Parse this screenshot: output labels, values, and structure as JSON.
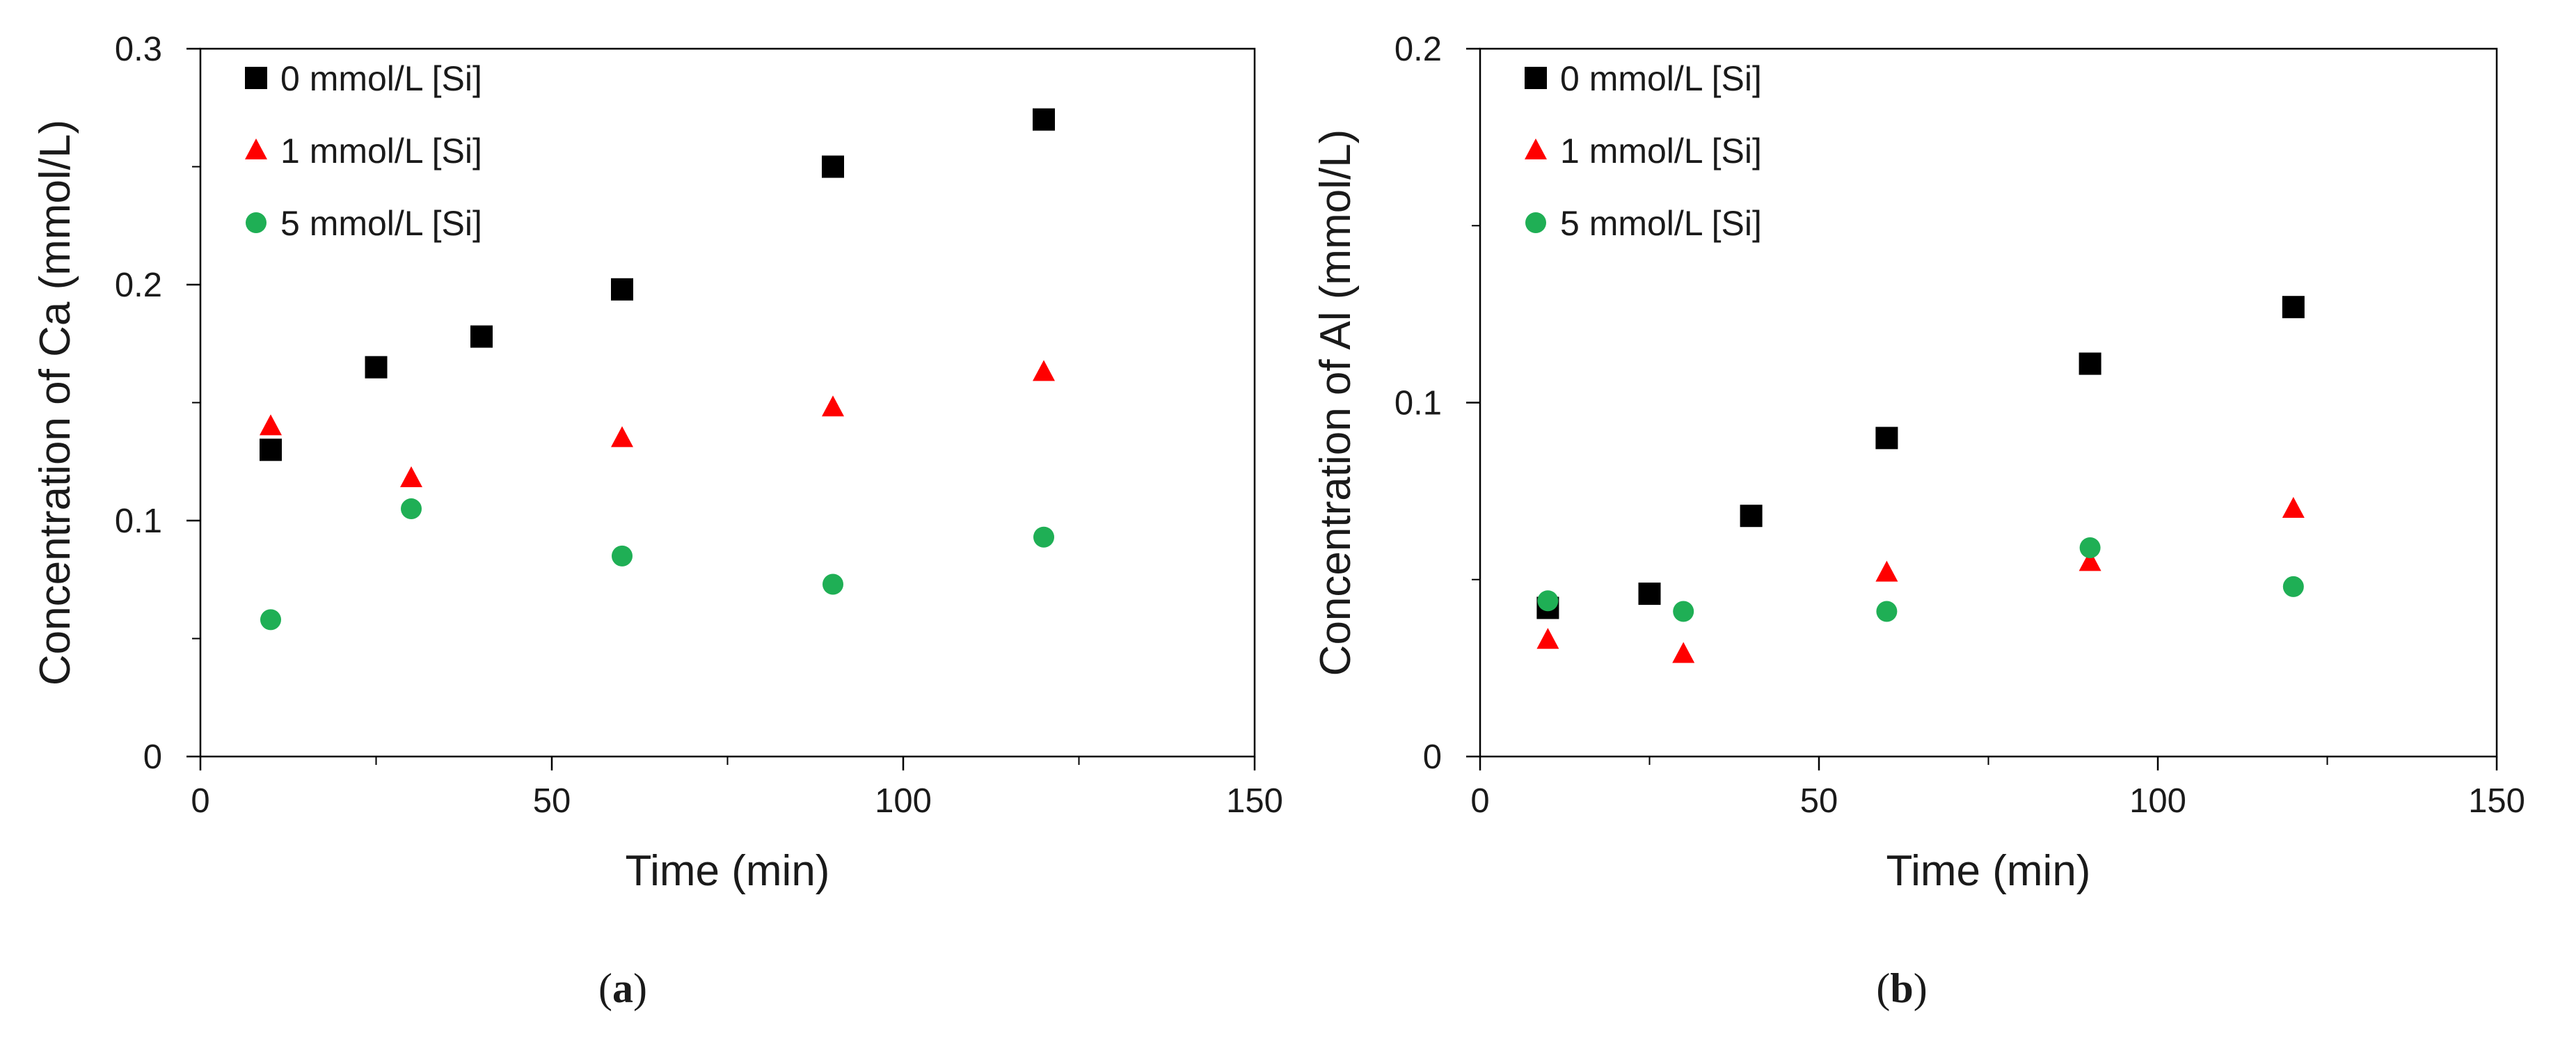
{
  "colors": {
    "series0": "#000000",
    "series1": "#ff0000",
    "series2": "#1faf55",
    "axis": "#000000"
  },
  "chart_data": [
    {
      "type": "scatter",
      "caption_letter": "a",
      "xlabel": "Time (min)",
      "ylabel": "Concentration of Ca (mmol/L)",
      "xlim": [
        0,
        150
      ],
      "ylim": [
        0,
        0.3
      ],
      "xticks": [
        0,
        50,
        100,
        150
      ],
      "xtick_labels": [
        "0",
        "50",
        "100",
        "150"
      ],
      "yticks": [
        0,
        0.1,
        0.2,
        0.3
      ],
      "ytick_labels": [
        "0",
        "0.1",
        "0.2",
        "0.3"
      ],
      "minor_ticks": true,
      "grid": false,
      "legend_position": "top-left",
      "series": [
        {
          "name": "0 mmol/L [Si]",
          "marker": "square",
          "color": "#000000",
          "points": [
            [
              10,
              0.13
            ],
            [
              25,
              0.165
            ],
            [
              40,
              0.178
            ],
            [
              60,
              0.198
            ],
            [
              90,
              0.25
            ],
            [
              120,
              0.27
            ]
          ]
        },
        {
          "name": "1 mmol/L [Si]",
          "marker": "triangle",
          "color": "#ff0000",
          "points": [
            [
              10,
              0.14
            ],
            [
              30,
              0.118
            ],
            [
              60,
              0.135
            ],
            [
              90,
              0.148
            ],
            [
              120,
              0.163
            ]
          ]
        },
        {
          "name": "5 mmol/L [Si]",
          "marker": "circle",
          "color": "#1faf55",
          "points": [
            [
              10,
              0.058
            ],
            [
              30,
              0.105
            ],
            [
              60,
              0.085
            ],
            [
              90,
              0.073
            ],
            [
              120,
              0.093
            ]
          ]
        }
      ]
    },
    {
      "type": "scatter",
      "caption_letter": "b",
      "xlabel": "Time (min)",
      "ylabel": "Concentration of Al (mmol/L)",
      "xlim": [
        0,
        150
      ],
      "ylim": [
        0,
        0.2
      ],
      "xticks": [
        0,
        50,
        100,
        150
      ],
      "xtick_labels": [
        "0",
        "50",
        "100",
        "150"
      ],
      "yticks": [
        0,
        0.1,
        0.2
      ],
      "ytick_labels": [
        "0",
        "0.1",
        "0.2"
      ],
      "minor_ticks": true,
      "grid": false,
      "legend_position": "top-left",
      "series": [
        {
          "name": "0 mmol/L [Si]",
          "marker": "square",
          "color": "#000000",
          "points": [
            [
              10,
              0.042
            ],
            [
              25,
              0.046
            ],
            [
              40,
              0.068
            ],
            [
              60,
              0.09
            ],
            [
              90,
              0.111
            ],
            [
              120,
              0.127
            ]
          ]
        },
        {
          "name": "1 mmol/L [Si]",
          "marker": "triangle",
          "color": "#ff0000",
          "points": [
            [
              10,
              0.033
            ],
            [
              30,
              0.029
            ],
            [
              60,
              0.052
            ],
            [
              90,
              0.055
            ],
            [
              120,
              0.07
            ]
          ]
        },
        {
          "name": "5 mmol/L [Si]",
          "marker": "circle",
          "color": "#1faf55",
          "points": [
            [
              10,
              0.044
            ],
            [
              30,
              0.041
            ],
            [
              60,
              0.041
            ],
            [
              90,
              0.059
            ],
            [
              120,
              0.048
            ]
          ]
        }
      ]
    }
  ]
}
